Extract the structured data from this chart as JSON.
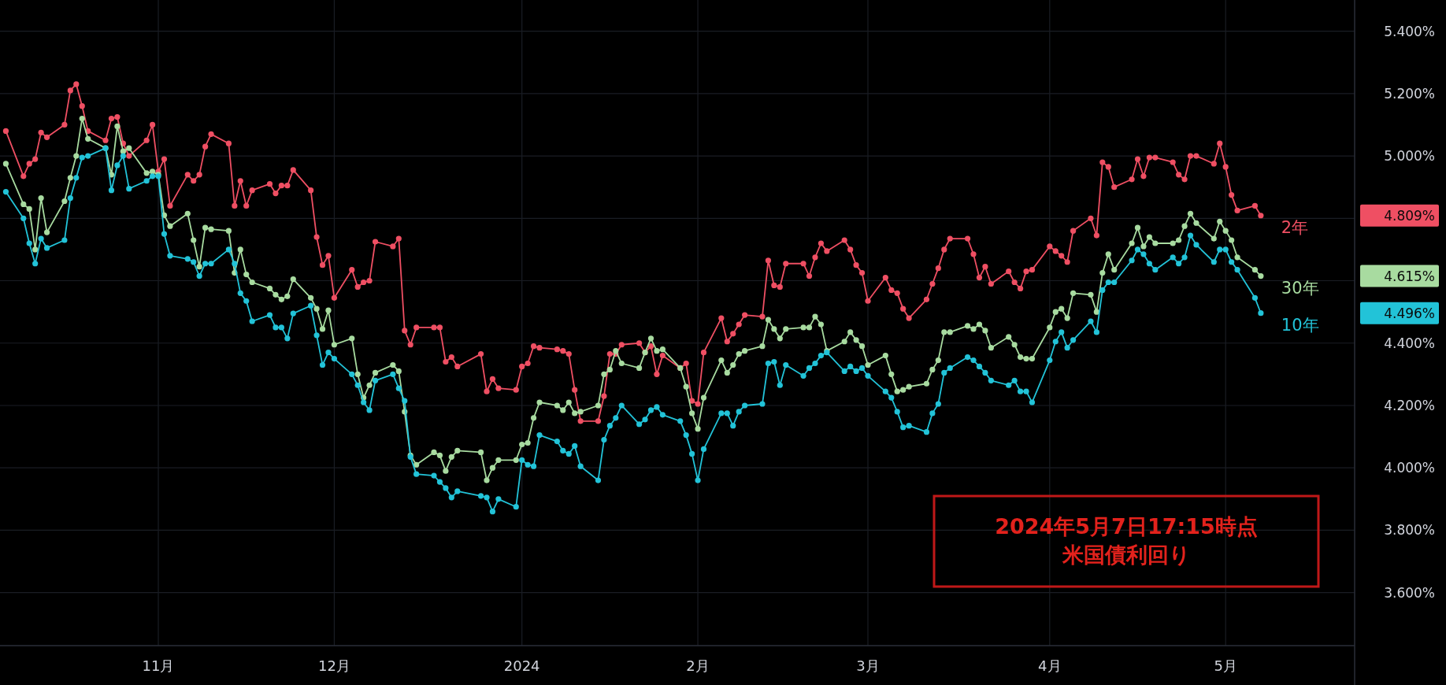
{
  "chart_data": {
    "type": "line",
    "marker": "circle",
    "line_style": "solid",
    "grid": true,
    "x": [
      "2023-10-06",
      "2023-10-09",
      "2023-10-10",
      "2023-10-11",
      "2023-10-12",
      "2023-10-13",
      "2023-10-16",
      "2023-10-17",
      "2023-10-18",
      "2023-10-19",
      "2023-10-20",
      "2023-10-23",
      "2023-10-24",
      "2023-10-25",
      "2023-10-26",
      "2023-10-27",
      "2023-10-30",
      "2023-10-31",
      "2023-11-01",
      "2023-11-02",
      "2023-11-03",
      "2023-11-06",
      "2023-11-07",
      "2023-11-08",
      "2023-11-09",
      "2023-11-10",
      "2023-11-13",
      "2023-11-14",
      "2023-11-15",
      "2023-11-16",
      "2023-11-17",
      "2023-11-20",
      "2023-11-21",
      "2023-11-22",
      "2023-11-23",
      "2023-11-24",
      "2023-11-27",
      "2023-11-28",
      "2023-11-29",
      "2023-11-30",
      "2023-12-01",
      "2023-12-04",
      "2023-12-05",
      "2023-12-06",
      "2023-12-07",
      "2023-12-08",
      "2023-12-11",
      "2023-12-12",
      "2023-12-13",
      "2023-12-14",
      "2023-12-15",
      "2023-12-18",
      "2023-12-19",
      "2023-12-20",
      "2023-12-21",
      "2023-12-22",
      "2023-12-26",
      "2023-12-27",
      "2023-12-28",
      "2023-12-29",
      "2024-01-01",
      "2024-01-02",
      "2024-01-03",
      "2024-01-04",
      "2024-01-05",
      "2024-01-08",
      "2024-01-09",
      "2024-01-10",
      "2024-01-11",
      "2024-01-12",
      "2024-01-15",
      "2024-01-16",
      "2024-01-17",
      "2024-01-18",
      "2024-01-19",
      "2024-01-22",
      "2024-01-23",
      "2024-01-24",
      "2024-01-25",
      "2024-01-26",
      "2024-01-29",
      "2024-01-30",
      "2024-01-31",
      "2024-02-01",
      "2024-02-02",
      "2024-02-05",
      "2024-02-06",
      "2024-02-07",
      "2024-02-08",
      "2024-02-09",
      "2024-02-12",
      "2024-02-13",
      "2024-02-14",
      "2024-02-15",
      "2024-02-16",
      "2024-02-19",
      "2024-02-20",
      "2024-02-21",
      "2024-02-22",
      "2024-02-23",
      "2024-02-26",
      "2024-02-27",
      "2024-02-28",
      "2024-02-29",
      "2024-03-01",
      "2024-03-04",
      "2024-03-05",
      "2024-03-06",
      "2024-03-07",
      "2024-03-08",
      "2024-03-11",
      "2024-03-12",
      "2024-03-13",
      "2024-03-14",
      "2024-03-15",
      "2024-03-18",
      "2024-03-19",
      "2024-03-20",
      "2024-03-21",
      "2024-03-22",
      "2024-03-25",
      "2024-03-26",
      "2024-03-27",
      "2024-03-28",
      "2024-03-29",
      "2024-04-01",
      "2024-04-02",
      "2024-04-03",
      "2024-04-04",
      "2024-04-05",
      "2024-04-08",
      "2024-04-09",
      "2024-04-10",
      "2024-04-11",
      "2024-04-12",
      "2024-04-15",
      "2024-04-16",
      "2024-04-17",
      "2024-04-18",
      "2024-04-19",
      "2024-04-22",
      "2024-04-23",
      "2024-04-24",
      "2024-04-25",
      "2024-04-26",
      "2024-04-29",
      "2024-04-30",
      "2024-05-01",
      "2024-05-02",
      "2024-05-03",
      "2024-05-06",
      "2024-05-07"
    ],
    "series": [
      {
        "name": "2年",
        "color": "#ef4f63",
        "values": [
          5.08,
          4.935,
          4.975,
          4.99,
          5.075,
          5.06,
          5.1,
          5.21,
          5.23,
          5.16,
          5.08,
          5.05,
          5.12,
          5.125,
          5.04,
          5.0,
          5.05,
          5.1,
          4.95,
          4.99,
          4.84,
          4.94,
          4.92,
          4.94,
          5.03,
          5.07,
          5.04,
          4.84,
          4.92,
          4.84,
          4.89,
          4.91,
          4.88,
          4.905,
          4.905,
          4.955,
          4.89,
          4.74,
          4.65,
          4.68,
          4.545,
          4.635,
          4.58,
          4.595,
          4.6,
          4.725,
          4.71,
          4.735,
          4.44,
          4.395,
          4.45,
          4.45,
          4.45,
          4.34,
          4.355,
          4.325,
          4.365,
          4.245,
          4.285,
          4.255,
          4.25,
          4.325,
          4.335,
          4.39,
          4.385,
          4.38,
          4.375,
          4.365,
          4.25,
          4.15,
          4.15,
          4.23,
          4.365,
          4.365,
          4.395,
          4.4,
          4.37,
          4.39,
          4.3,
          4.36,
          4.32,
          4.335,
          4.215,
          4.205,
          4.37,
          4.48,
          4.405,
          4.43,
          4.46,
          4.49,
          4.485,
          4.665,
          4.585,
          4.58,
          4.655,
          4.655,
          4.615,
          4.675,
          4.72,
          4.695,
          4.73,
          4.7,
          4.65,
          4.625,
          4.535,
          4.61,
          4.57,
          4.56,
          4.51,
          4.48,
          4.54,
          4.59,
          4.64,
          4.7,
          4.735,
          4.735,
          4.685,
          4.61,
          4.645,
          4.59,
          4.63,
          4.595,
          4.575,
          4.63,
          4.635,
          4.71,
          4.695,
          4.68,
          4.66,
          4.76,
          4.8,
          4.745,
          4.98,
          4.965,
          4.9,
          4.925,
          4.99,
          4.935,
          4.995,
          4.995,
          4.98,
          4.94,
          4.925,
          5.0,
          5.0,
          4.975,
          5.04,
          4.965,
          4.875,
          4.825,
          4.84,
          4.809
        ]
      },
      {
        "name": "30年",
        "color": "#a8dba0",
        "values": [
          4.975,
          4.845,
          4.83,
          4.7,
          4.865,
          4.755,
          4.855,
          4.93,
          5.0,
          5.12,
          5.055,
          5.025,
          4.94,
          5.095,
          5.015,
          5.025,
          4.945,
          4.95,
          4.94,
          4.81,
          4.775,
          4.815,
          4.73,
          4.645,
          4.77,
          4.765,
          4.76,
          4.625,
          4.7,
          4.62,
          4.595,
          4.575,
          4.555,
          4.54,
          4.55,
          4.605,
          4.545,
          4.51,
          4.445,
          4.505,
          4.395,
          4.415,
          4.3,
          4.225,
          4.265,
          4.305,
          4.33,
          4.31,
          4.18,
          4.04,
          4.01,
          4.05,
          4.04,
          3.99,
          4.035,
          4.055,
          4.05,
          3.96,
          4.0,
          4.025,
          4.025,
          4.075,
          4.08,
          4.16,
          4.21,
          4.2,
          4.185,
          4.21,
          4.175,
          4.18,
          4.2,
          4.3,
          4.315,
          4.375,
          4.335,
          4.32,
          4.37,
          4.415,
          4.375,
          4.38,
          4.32,
          4.26,
          4.175,
          4.125,
          4.225,
          4.345,
          4.305,
          4.33,
          4.365,
          4.375,
          4.39,
          4.475,
          4.445,
          4.415,
          4.445,
          4.45,
          4.45,
          4.485,
          4.46,
          4.375,
          4.405,
          4.435,
          4.41,
          4.39,
          4.33,
          4.36,
          4.3,
          4.245,
          4.25,
          4.26,
          4.27,
          4.315,
          4.345,
          4.435,
          4.435,
          4.455,
          4.445,
          4.46,
          4.44,
          4.385,
          4.42,
          4.395,
          4.355,
          4.35,
          4.35,
          4.45,
          4.5,
          4.51,
          4.48,
          4.56,
          4.555,
          4.5,
          4.625,
          4.685,
          4.635,
          4.72,
          4.77,
          4.71,
          4.74,
          4.72,
          4.72,
          4.73,
          4.775,
          4.815,
          4.785,
          4.735,
          4.79,
          4.76,
          4.73,
          4.675,
          4.635,
          4.615
        ]
      },
      {
        "name": "10年",
        "color": "#22c3d8",
        "values": [
          4.885,
          4.8,
          4.72,
          4.655,
          4.735,
          4.705,
          4.73,
          4.865,
          4.93,
          4.995,
          5.0,
          5.025,
          4.89,
          4.97,
          5.0,
          4.895,
          4.92,
          4.935,
          4.935,
          4.75,
          4.68,
          4.67,
          4.66,
          4.615,
          4.655,
          4.655,
          4.7,
          4.655,
          4.56,
          4.535,
          4.47,
          4.49,
          4.45,
          4.45,
          4.415,
          4.495,
          4.52,
          4.425,
          4.33,
          4.37,
          4.35,
          4.3,
          4.265,
          4.21,
          4.185,
          4.28,
          4.3,
          4.255,
          4.215,
          4.035,
          3.98,
          3.975,
          3.955,
          3.935,
          3.905,
          3.925,
          3.91,
          3.905,
          3.86,
          3.9,
          3.875,
          4.025,
          4.01,
          4.005,
          4.105,
          4.085,
          4.055,
          4.045,
          4.07,
          4.005,
          3.96,
          4.09,
          4.135,
          4.16,
          4.2,
          4.14,
          4.155,
          4.185,
          4.195,
          4.17,
          4.15,
          4.105,
          4.045,
          3.96,
          4.06,
          4.175,
          4.175,
          4.135,
          4.18,
          4.2,
          4.205,
          4.335,
          4.34,
          4.265,
          4.33,
          4.295,
          4.32,
          4.335,
          4.36,
          4.37,
          4.31,
          4.325,
          4.31,
          4.32,
          4.295,
          4.245,
          4.225,
          4.18,
          4.13,
          4.135,
          4.115,
          4.175,
          4.205,
          4.305,
          4.32,
          4.355,
          4.345,
          4.325,
          4.305,
          4.28,
          4.265,
          4.28,
          4.245,
          4.245,
          4.21,
          4.345,
          4.405,
          4.435,
          4.385,
          4.41,
          4.47,
          4.435,
          4.57,
          4.595,
          4.595,
          4.665,
          4.7,
          4.685,
          4.655,
          4.635,
          4.675,
          4.655,
          4.675,
          4.745,
          4.715,
          4.66,
          4.7,
          4.7,
          4.66,
          4.635,
          4.545,
          4.496
        ]
      }
    ],
    "xlim": [
      "2023-10-05",
      "2024-05-23"
    ],
    "xticks": [
      {
        "value": "2023-11-01",
        "label": "11月"
      },
      {
        "value": "2023-12-01",
        "label": "12月"
      },
      {
        "value": "2024-01-02",
        "label": "2024"
      },
      {
        "value": "2024-02-01",
        "label": "2月"
      },
      {
        "value": "2024-03-01",
        "label": "3月"
      },
      {
        "value": "2024-04-01",
        "label": "4月"
      },
      {
        "value": "2024-05-01",
        "label": "5月"
      }
    ],
    "ylim": [
      3.43,
      5.5
    ],
    "yticks": [
      {
        "value": 3.6,
        "label": "3.600%"
      },
      {
        "value": 3.8,
        "label": "3.800%"
      },
      {
        "value": 4.0,
        "label": "4.000%"
      },
      {
        "value": 4.2,
        "label": "4.200%"
      },
      {
        "value": 4.4,
        "label": "4.400%"
      },
      {
        "value": 4.496,
        "label": "4.496%"
      },
      {
        "value": 4.6,
        "label": null
      },
      {
        "value": 4.615,
        "label": "4.615%"
      },
      {
        "value": 4.8,
        "label": null
      },
      {
        "value": 4.809,
        "label": "4.809%"
      },
      {
        "value": 5.0,
        "label": "5.000%"
      },
      {
        "value": 5.2,
        "label": "5.200%"
      },
      {
        "value": 5.4,
        "label": "5.400%"
      }
    ],
    "annotations": [
      "2024年5月7日17:15時点",
      "米国債利回り"
    ]
  }
}
